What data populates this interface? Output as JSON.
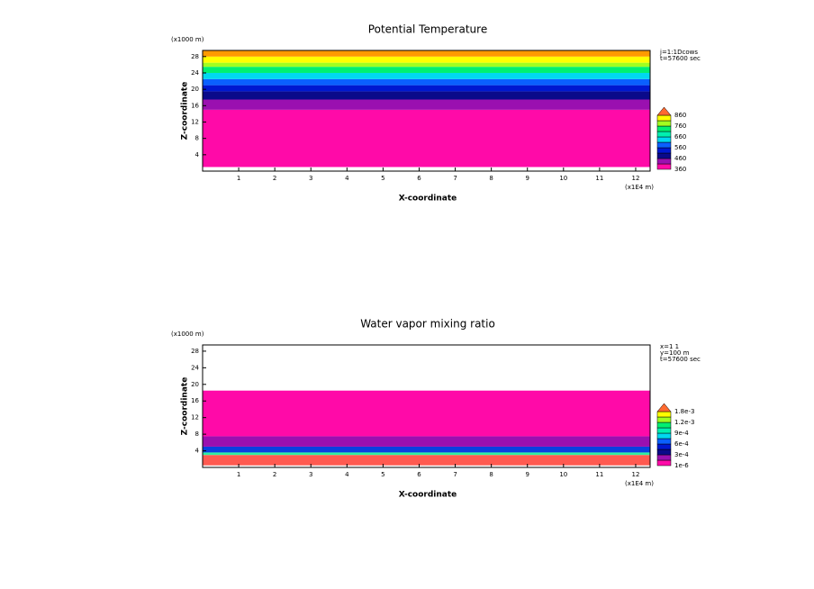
{
  "chart_data": [
    {
      "type": "contour",
      "title": "Potential Temperature",
      "xlabel": "X-coordinate",
      "ylabel": "Z-coordinate",
      "xunit": "(x1E4 m)",
      "yunit": "(x1000 m)",
      "annotations": [
        "j=1:1Dcows",
        "t=57600 sec"
      ],
      "xlim": [
        0,
        12.4
      ],
      "ylim": [
        0,
        29.5
      ],
      "xticks": [
        1,
        2,
        3,
        4,
        5,
        6,
        7,
        8,
        9,
        10,
        11,
        12
      ],
      "yticks": [
        4,
        8,
        12,
        16,
        20,
        24,
        28
      ],
      "layers": [
        {
          "from": 1,
          "to": 15,
          "color": "#ff0aa8"
        },
        {
          "from": 15,
          "to": 17.5,
          "color": "#9a10b0"
        },
        {
          "from": 17.5,
          "to": 19.5,
          "color": "#0a0a8a"
        },
        {
          "from": 19.5,
          "to": 21,
          "color": "#0018d0"
        },
        {
          "from": 21,
          "to": 22.5,
          "color": "#0a60ff"
        },
        {
          "from": 22.5,
          "to": 24,
          "color": "#00d8f0"
        },
        {
          "from": 24,
          "to": 25.5,
          "color": "#00f070"
        },
        {
          "from": 25.5,
          "to": 26.5,
          "color": "#a0ff20"
        },
        {
          "from": 26.5,
          "to": 28,
          "color": "#ffff00"
        },
        {
          "from": 28,
          "to": 29.5,
          "color": "#ff9a00"
        }
      ],
      "colorbar": {
        "colors": [
          "#ff0aa8",
          "#9a10b0",
          "#0a0a8a",
          "#0018d0",
          "#0a60ff",
          "#00d8f0",
          "#00f0b0",
          "#00f070",
          "#a0ff20",
          "#ffff00",
          "#ff6a30"
        ],
        "labels": [
          "360",
          "460",
          "560",
          "660",
          "760",
          "860"
        ]
      }
    },
    {
      "type": "contour",
      "title": "Water vapor mixing ratio",
      "xlabel": "X-coordinate",
      "ylabel": "Z-coordinate",
      "xunit": "(x1E4 m)",
      "yunit": "(x1000 m)",
      "annotations": [
        "x=1 1",
        "y=100 m",
        "t=57600 sec"
      ],
      "xlim": [
        0,
        12.4
      ],
      "ylim": [
        0,
        29.5
      ],
      "xticks": [
        1,
        2,
        3,
        4,
        5,
        6,
        7,
        8,
        9,
        10,
        11,
        12
      ],
      "yticks": [
        4,
        8,
        12,
        16,
        20,
        24,
        28
      ],
      "layers": [
        {
          "from": 0.5,
          "to": 3,
          "color": "#ff5a50"
        },
        {
          "from": 3,
          "to": 3.6,
          "color": "#30f0a0"
        },
        {
          "from": 3.6,
          "to": 5,
          "color": "#0a40e0"
        },
        {
          "from": 5,
          "to": 7.5,
          "color": "#9a10b0"
        },
        {
          "from": 7.5,
          "to": 18.5,
          "color": "#ff0aa8"
        }
      ],
      "colorbar": {
        "colors": [
          "#ff0aa8",
          "#9a10b0",
          "#0a0a8a",
          "#0018d0",
          "#0a60ff",
          "#00d8f0",
          "#00f0b0",
          "#00f070",
          "#a0ff20",
          "#ffff00",
          "#ff6a30"
        ],
        "labels": [
          "1e-6",
          "3e-4",
          "6e-4",
          "9e-4",
          "1.2e-3",
          "1.8e-3"
        ]
      }
    }
  ]
}
